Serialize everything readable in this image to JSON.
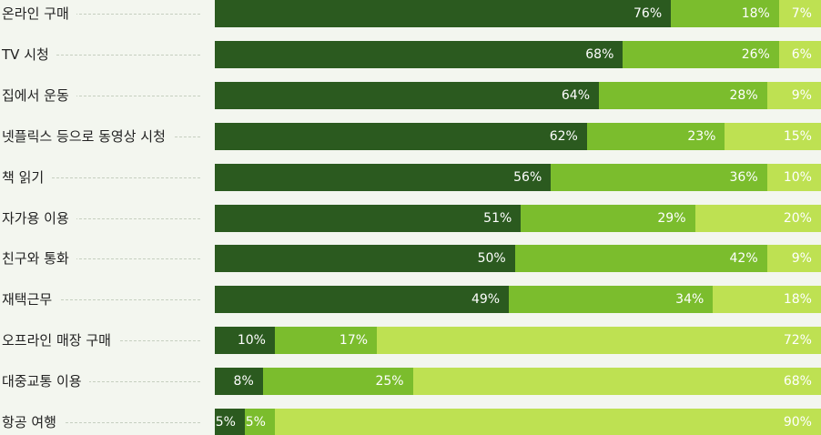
{
  "chart_data": {
    "type": "bar",
    "orientation": "horizontal",
    "stacked": true,
    "categories": [
      "온라인 구매",
      "TV 시청",
      "집에서 운동",
      "넷플릭스 등으로 동영상 시청",
      "책 읽기",
      "자가용 이용",
      "친구와 통화",
      "재택근무",
      "오프라인 매장 구매",
      "대중교통 이용",
      "항공 여행"
    ],
    "series": [
      {
        "color": "#2b5a1f",
        "values": [
          76,
          68,
          64,
          62,
          56,
          51,
          50,
          49,
          10,
          8,
          5
        ]
      },
      {
        "color": "#7bbd2d",
        "values": [
          18,
          26,
          28,
          23,
          36,
          29,
          42,
          34,
          17,
          25,
          5
        ]
      },
      {
        "color": "#bee152",
        "values": [
          7,
          6,
          9,
          15,
          10,
          20,
          9,
          18,
          72,
          68,
          90
        ]
      }
    ],
    "value_format": "{v}%",
    "xlim": [
      0,
      101
    ],
    "grid": false,
    "legend": "none"
  }
}
